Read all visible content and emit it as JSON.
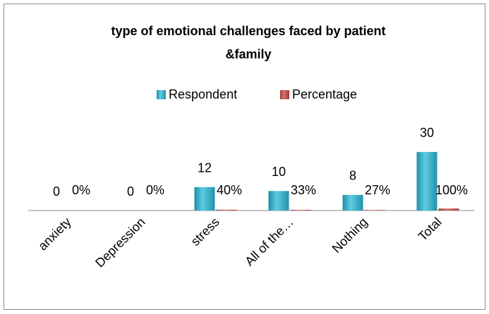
{
  "chart_data": {
    "type": "bar",
    "title": [
      "type of emotional challenges faced by patient",
      "&family"
    ],
    "categories": [
      "anxiety",
      "Depression",
      "stress",
      "All of the…",
      "Nothing",
      "Total"
    ],
    "series": [
      {
        "name": "Respondent",
        "color": "#31b2cf",
        "values": [
          0,
          0,
          12,
          10,
          8,
          30
        ]
      },
      {
        "name": "Percentage",
        "color": "#c0504d",
        "values": [
          0,
          0,
          0.4,
          0.33,
          0.27,
          1
        ],
        "value_labels": [
          "0%",
          "0%",
          "40%",
          "33%",
          "27%",
          "100%"
        ]
      }
    ],
    "ylim": [
      0,
      35
    ],
    "legend": "top"
  }
}
